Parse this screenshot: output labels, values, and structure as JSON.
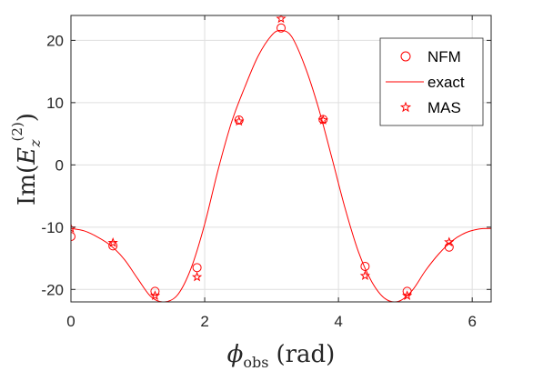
{
  "chart_data": {
    "type": "line",
    "title": "",
    "xlabel": {
      "main": "ϕ",
      "sub": "obs",
      "unit": "(rad)"
    },
    "ylabel": {
      "prefix": "Im(",
      "var": "E",
      "sub": "z",
      "sup": "(2)",
      "suffix": ")"
    },
    "xlim": [
      0,
      6.2832
    ],
    "ylim": [
      -22,
      24
    ],
    "xticks": [
      0,
      2,
      4,
      6
    ],
    "yticks": [
      -20,
      -10,
      0,
      10,
      20
    ],
    "xtick_labels": [
      "0",
      "2",
      "4",
      "6"
    ],
    "ytick_labels": [
      "-20",
      "-10",
      "0",
      "10",
      "20"
    ],
    "grid": true,
    "legend_position": "top-right",
    "color": "#ff0000",
    "series": [
      {
        "name": "NFM",
        "marker": "circle",
        "x": [
          0,
          0.628,
          1.257,
          1.885,
          2.513,
          3.142,
          3.77,
          4.398,
          5.027,
          5.655
        ],
        "y": [
          -11.5,
          -13.0,
          -20.3,
          -16.5,
          7.2,
          22.0,
          7.3,
          -16.3,
          -20.3,
          -13.2
        ]
      },
      {
        "name": "exact",
        "marker": "none",
        "x": [
          0,
          0.2,
          0.4,
          0.6,
          0.8,
          1.0,
          1.2,
          1.4,
          1.6,
          1.8,
          2.0,
          2.2,
          2.4,
          2.6,
          2.8,
          3.0,
          3.14,
          3.3,
          3.5,
          3.7,
          3.9,
          4.1,
          4.3,
          4.5,
          4.7,
          4.9,
          5.1,
          5.3,
          5.5,
          5.7,
          5.9,
          6.1,
          6.283
        ],
        "y": [
          -10.2,
          -10.6,
          -11.6,
          -13.0,
          -15.2,
          -18.3,
          -21.2,
          -22.0,
          -20.8,
          -16.5,
          -9.5,
          -0.8,
          6.8,
          12.5,
          17.5,
          20.8,
          21.6,
          20.6,
          15.8,
          9.2,
          1.2,
          -7.0,
          -14.0,
          -18.8,
          -21.5,
          -21.9,
          -20.2,
          -17.0,
          -14.3,
          -12.2,
          -10.9,
          -10.3,
          -10.2
        ]
      },
      {
        "name": "MAS",
        "marker": "star",
        "x": [
          0,
          0.628,
          1.257,
          1.885,
          2.513,
          3.142,
          3.77,
          4.398,
          5.027,
          5.655
        ],
        "y": [
          -10.2,
          -12.5,
          -21.0,
          -18.0,
          7.0,
          23.5,
          7.2,
          -17.8,
          -21.0,
          -12.4
        ]
      }
    ]
  }
}
